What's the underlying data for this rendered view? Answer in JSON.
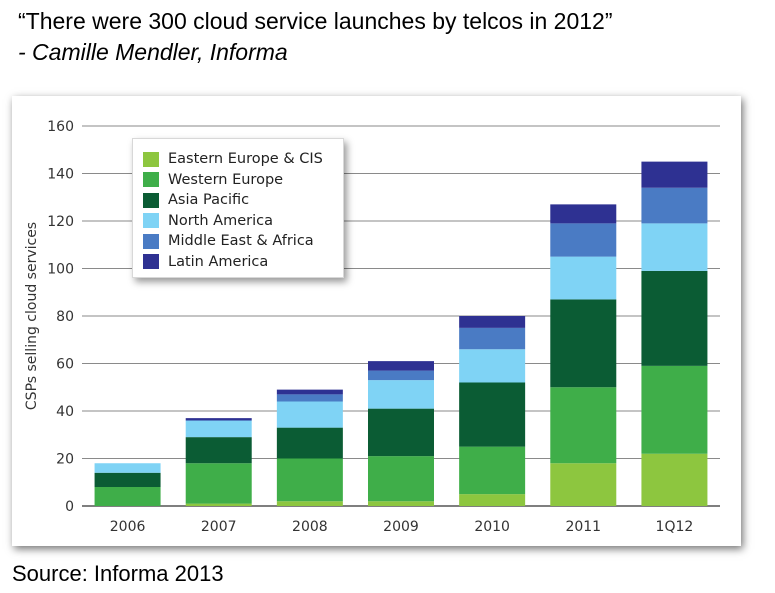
{
  "quote": "“There were 300 cloud service launches by telcos in 2012”",
  "attribution": "- Camille  Mendler, Informa",
  "source": "Source: Informa 2013",
  "chart_data": {
    "type": "bar",
    "stacked": true,
    "ylabel": "CSPs selling cloud services",
    "xlabel": "",
    "ylim": [
      0,
      160
    ],
    "yticks": [
      "0",
      "20",
      "40",
      "60",
      "80",
      "100",
      "120",
      "140",
      "160"
    ],
    "grid": true,
    "legend_position": "top-left",
    "categories": [
      "2006",
      "2007",
      "2008",
      "2009",
      "2010",
      "2011",
      "1Q12"
    ],
    "series": [
      {
        "name": "Eastern Europe & CIS",
        "color": "#8dc63f",
        "values": [
          0,
          1,
          2,
          2,
          5,
          18,
          22
        ]
      },
      {
        "name": "Western Europe",
        "color": "#3fae49",
        "values": [
          8,
          17,
          18,
          19,
          20,
          32,
          37
        ]
      },
      {
        "name": "Asia Pacific",
        "color": "#0b5c34",
        "values": [
          6,
          11,
          13,
          20,
          27,
          37,
          40
        ]
      },
      {
        "name": "North America",
        "color": "#7fd3f5",
        "values": [
          4,
          7,
          11,
          12,
          14,
          18,
          20
        ]
      },
      {
        "name": "Middle East & Africa",
        "color": "#4a7bc4",
        "values": [
          0,
          0,
          3,
          4,
          9,
          14,
          15
        ]
      },
      {
        "name": "Latin America",
        "color": "#2e3192",
        "values": [
          0,
          1,
          2,
          4,
          5,
          8,
          11
        ]
      }
    ]
  }
}
